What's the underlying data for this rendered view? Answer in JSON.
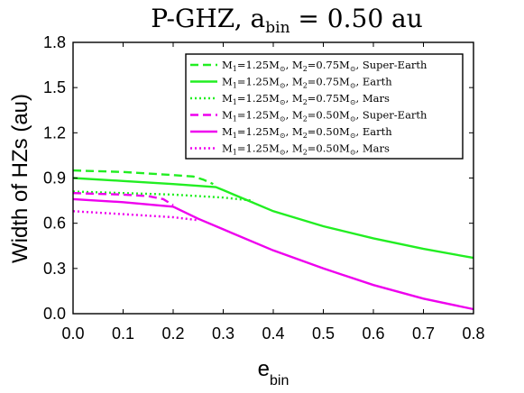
{
  "chart_data": {
    "type": "line",
    "title": {
      "main": "P-GHZ, a",
      "sub": "bin",
      "rest": " = 0.50 au"
    },
    "xlabel": {
      "main": "e",
      "sub": "bin"
    },
    "ylabel": "Width of HZs (au)",
    "xlim": [
      0,
      0.8
    ],
    "ylim": [
      0,
      1.8
    ],
    "xticks": [
      "0.0",
      "0.1",
      "0.2",
      "0.3",
      "0.4",
      "0.5",
      "0.6",
      "0.7",
      "0.8"
    ],
    "yticks": [
      "0.0",
      "0.3",
      "0.6",
      "0.9",
      "1.2",
      "1.5",
      "1.8"
    ],
    "legend_position": "top-right",
    "series": [
      {
        "legend": {
          "m1": "M",
          "m1sub": "1",
          "m1val": "=1.25M",
          "m1sun": "⊙",
          "m2": ", M",
          "m2sub": "2",
          "m2val": "=0.75M",
          "m2sun": "⊙",
          "planet": ", Super-Earth"
        },
        "color": "#22ee22",
        "dash": "dashed",
        "x": [
          0.0,
          0.1,
          0.2,
          0.24,
          0.26,
          0.28
        ],
        "y": [
          0.95,
          0.94,
          0.92,
          0.91,
          0.89,
          0.86
        ]
      },
      {
        "legend": {
          "m1": "M",
          "m1sub": "1",
          "m1val": "=1.25M",
          "m1sun": "⊙",
          "m2": ", M",
          "m2sub": "2",
          "m2val": "=0.75M",
          "m2sun": "⊙",
          "planet": ", Earth"
        },
        "color": "#22ee22",
        "dash": "solid",
        "x": [
          0.0,
          0.1,
          0.2,
          0.285,
          0.3,
          0.35,
          0.4,
          0.5,
          0.6,
          0.7,
          0.8
        ],
        "y": [
          0.9,
          0.88,
          0.86,
          0.84,
          0.82,
          0.75,
          0.68,
          0.58,
          0.5,
          0.43,
          0.37
        ]
      },
      {
        "legend": {
          "m1": "M",
          "m1sub": "1",
          "m1val": "=1.25M",
          "m1sun": "⊙",
          "m2": ", M",
          "m2sub": "2",
          "m2val": "=0.75M",
          "m2sun": "⊙",
          "planet": ", Mars"
        },
        "color": "#22ee22",
        "dash": "dotted",
        "x": [
          0.0,
          0.1,
          0.2,
          0.3,
          0.36
        ],
        "y": [
          0.81,
          0.8,
          0.79,
          0.77,
          0.75
        ]
      },
      {
        "legend": {
          "m1": "M",
          "m1sub": "1",
          "m1val": "=1.25M",
          "m1sun": "⊙",
          "m2": ", M",
          "m2sub": "2",
          "m2val": "=0.50M",
          "m2sun": "⊙",
          "planet": ", Super-Earth"
        },
        "color": "#ee00ee",
        "dash": "dashed",
        "x": [
          0.0,
          0.1,
          0.15,
          0.18,
          0.2
        ],
        "y": [
          0.8,
          0.79,
          0.78,
          0.76,
          0.72
        ]
      },
      {
        "legend": {
          "m1": "M",
          "m1sub": "1",
          "m1val": "=1.25M",
          "m1sun": "⊙",
          "m2": ", M",
          "m2sub": "2",
          "m2val": "=0.50M",
          "m2sun": "⊙",
          "planet": ", Earth"
        },
        "color": "#ee00ee",
        "dash": "solid",
        "x": [
          0.0,
          0.1,
          0.2,
          0.25,
          0.3,
          0.4,
          0.5,
          0.6,
          0.7,
          0.8
        ],
        "y": [
          0.76,
          0.74,
          0.71,
          0.63,
          0.56,
          0.42,
          0.3,
          0.19,
          0.1,
          0.03
        ]
      },
      {
        "legend": {
          "m1": "M",
          "m1sub": "1",
          "m1val": "=1.25M",
          "m1sun": "⊙",
          "m2": ", M",
          "m2sub": "2",
          "m2val": "=0.50M",
          "m2sun": "⊙",
          "planet": ", Mars"
        },
        "color": "#ee00ee",
        "dash": "dotted",
        "x": [
          0.0,
          0.1,
          0.2,
          0.25
        ],
        "y": [
          0.68,
          0.66,
          0.64,
          0.62
        ]
      }
    ]
  }
}
